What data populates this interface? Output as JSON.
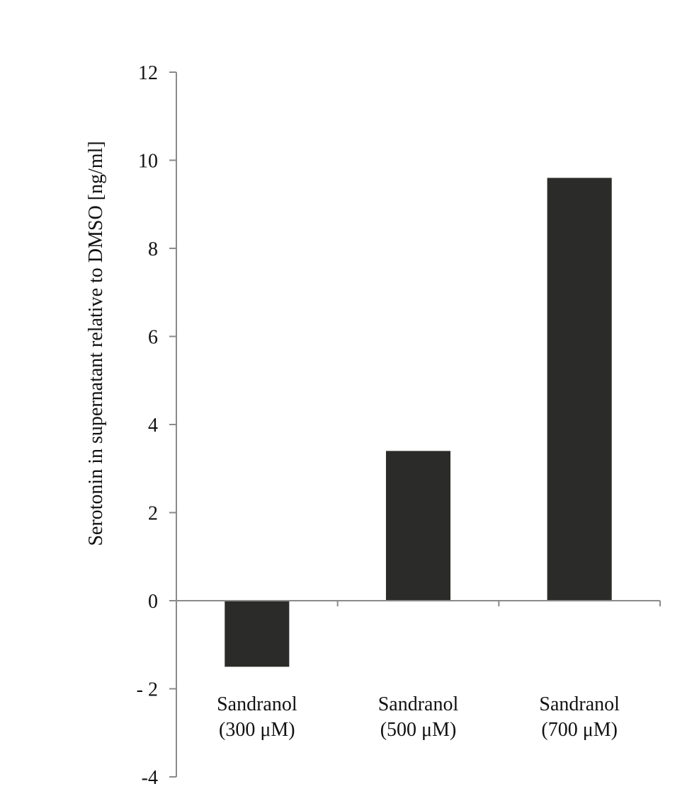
{
  "chart_data": {
    "type": "bar",
    "categories": [
      [
        "Sandranol",
        "(300 μM)"
      ],
      [
        "Sandranol",
        "(500 μM)"
      ],
      [
        "Sandranol",
        "(700 μM)"
      ]
    ],
    "values": [
      -1.5,
      3.4,
      9.6
    ],
    "ylabel": "Serotonin in supernatant relative to DMSO [ng/ml]",
    "ylim": [
      -4,
      12
    ],
    "yticks": [
      12,
      10,
      8,
      6,
      4,
      2,
      0,
      -2,
      -4
    ],
    "ytick_labels": [
      "12",
      "10",
      "8",
      "6",
      "4",
      "2",
      "0",
      "- 2",
      "-4"
    ],
    "bar_color": "#2b2b29",
    "axis_color": "#8a8a8a",
    "grid": false,
    "legend": "none"
  }
}
